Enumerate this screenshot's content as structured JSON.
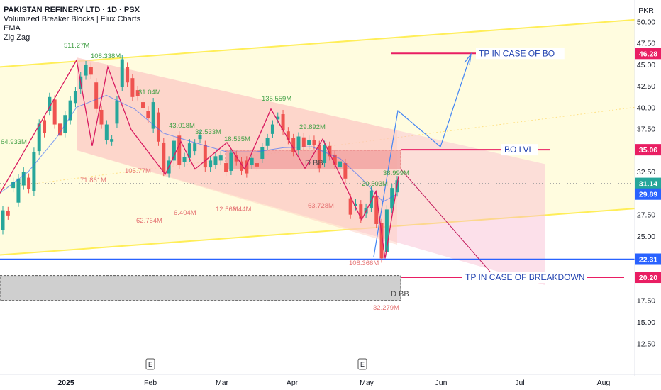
{
  "chart_data": {
    "type": "candlestick",
    "symbol_line": "PAKISTAN REFINERY LTD · 1D · PSX",
    "indicators": [
      "Volumized Breaker Blocks | Flux Charts",
      "EMA",
      "Zig Zag"
    ],
    "currency": "PKR",
    "y_ticks": [
      "50.00",
      "47.50",
      "45.00",
      "42.50",
      "40.00",
      "37.50",
      "35.00",
      "32.50",
      "30.00",
      "27.50",
      "25.00",
      "22.50",
      "20.00",
      "17.50",
      "15.00",
      "12.50"
    ],
    "ylim": [
      11.2,
      52.5
    ],
    "x_ticks": [
      "2025",
      "Feb",
      "Mar",
      "Apr",
      "May",
      "Jun",
      "Jul",
      "Aug"
    ],
    "event_markers": [
      "E",
      "E"
    ],
    "price_labels": [
      {
        "text": "46.28",
        "value": 46.28,
        "color": "#e91e63"
      },
      {
        "text": "35.06",
        "value": 35.06,
        "color": "#e91e63"
      },
      {
        "text": "31.14",
        "value": 31.14,
        "color": "#26a69a"
      },
      {
        "text": "29.89",
        "value": 29.89,
        "color": "#2962ff"
      },
      {
        "text": "22.31",
        "value": 22.31,
        "color": "#2962ff"
      },
      {
        "text": "20.20",
        "value": 20.2,
        "color": "#e91e63"
      }
    ],
    "annotations": [
      {
        "text": "TP IN CASE OF BO",
        "value": 46.28
      },
      {
        "text": "BO LVL",
        "value": 35.06
      },
      {
        "text": "TP IN CASE OF BREAKDOWN",
        "value": 20.2
      }
    ],
    "breaker_blocks": [
      {
        "label": "D BB",
        "high": 35.0,
        "low": 32.8
      },
      {
        "label": "D BB",
        "high": 20.4,
        "low": 17.5
      }
    ],
    "volume_labels_green": [
      "511.27M",
      "108.338M",
      "64.933M",
      "31.04M",
      "43.018M",
      "32.533M",
      "18.535M",
      "135.559M",
      "29.892M",
      "38.999M",
      "20.503M"
    ],
    "volume_labels_red": [
      "71.861M",
      "105.77M",
      "6.404M",
      "62.764M",
      "12.56M",
      "6.44M",
      "63.728M",
      "108.366M",
      "32.279M"
    ],
    "colors": {
      "up": "#26a69a",
      "down": "#ef5350",
      "zigzag": "#d81b60",
      "ema": "#2962ff",
      "channel": "#ffee58",
      "projection": "#4285f4"
    }
  }
}
